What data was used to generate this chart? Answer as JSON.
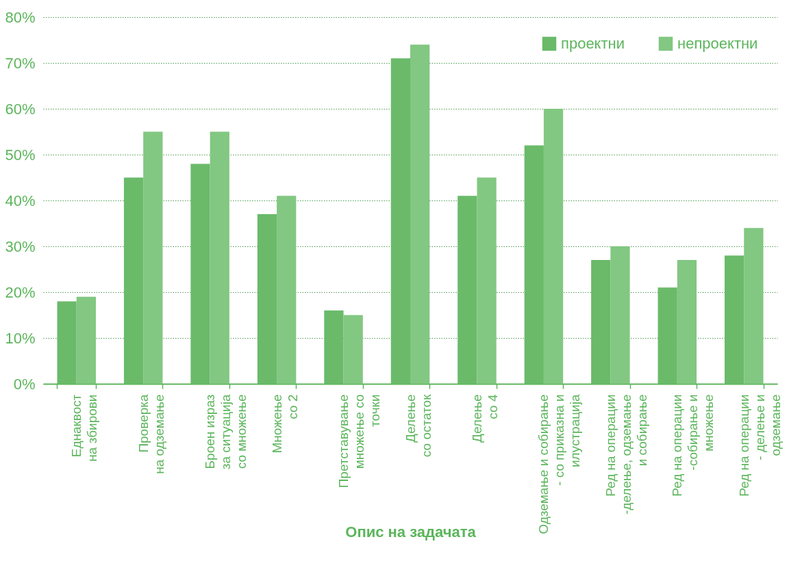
{
  "chart_data": {
    "type": "bar",
    "xlabel": "Опис на задачата",
    "categories": [
      "Еднаквост\nна збирови",
      "Проверка\nна одземање",
      "Броен израз\nза ситуација\nсо множење",
      "Множење\nсо 2",
      "Претставување\nмножење со\nточки",
      "Делење\nсо остаток",
      "Делење\nсо 4",
      "Одземање и собирање\n- со приказна и\nилустрација",
      "Ред на операции\n-делење, одземање\nи собирање",
      "Ред на операции\n-собирање и\nмножење",
      "Ред на операции\n- делење и\nодземање"
    ],
    "series": [
      {
        "name": "проектни",
        "color": "#6aba6a",
        "values": [
          18,
          45,
          48,
          37,
          16,
          71,
          41,
          52,
          27,
          21,
          28
        ]
      },
      {
        "name": "непроектни",
        "color": "#82c782",
        "values": [
          19,
          55,
          55,
          41,
          15,
          74,
          45,
          60,
          30,
          27,
          34
        ]
      }
    ],
    "ylim": [
      0,
      80
    ],
    "yticks": [
      {
        "value": 0,
        "label": "0%"
      },
      {
        "value": 10,
        "label": "10%"
      },
      {
        "value": 20,
        "label": "20%"
      },
      {
        "value": 30,
        "label": "30%"
      },
      {
        "value": 40,
        "label": "40%"
      },
      {
        "value": 50,
        "label": "50%"
      },
      {
        "value": 60,
        "label": "60%"
      },
      {
        "value": 70,
        "label": "70%"
      },
      {
        "value": 80,
        "label": "80%"
      }
    ],
    "grid": "y",
    "legend": "top right"
  }
}
